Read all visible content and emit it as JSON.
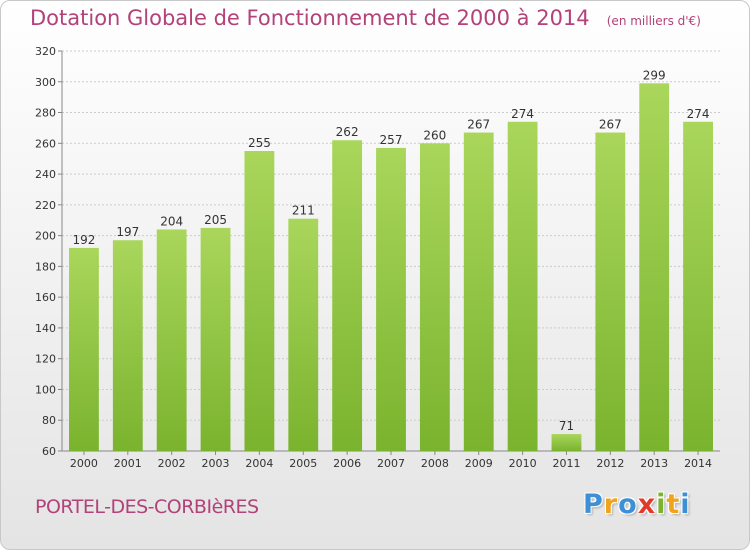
{
  "chart_data": {
    "type": "bar",
    "title": "Dotation Globale de Fonctionnement de 2000 à 2014",
    "subtitle": "(en milliers d'€)",
    "categories": [
      "2000",
      "2001",
      "2002",
      "2003",
      "2004",
      "2005",
      "2006",
      "2007",
      "2008",
      "2009",
      "2010",
      "2011",
      "2012",
      "2013",
      "2014"
    ],
    "values": [
      192,
      197,
      204,
      205,
      255,
      211,
      262,
      257,
      260,
      267,
      274,
      71,
      267,
      299,
      274
    ],
    "ylim": [
      60,
      320
    ],
    "yticks": [
      60,
      80,
      100,
      120,
      140,
      160,
      180,
      200,
      220,
      240,
      260,
      280,
      300,
      320
    ],
    "xlabel": "",
    "ylabel": "",
    "grid": true,
    "bar_color": "#7ab32e",
    "bar_color_light": "#a9d65b"
  },
  "footer": {
    "commune": "PORTEL-DES-CORBIèRES",
    "logo_letters": [
      "P",
      "r",
      "o",
      "x",
      "i",
      "t",
      "i"
    ],
    "logo_colors": [
      "#3d8fd6",
      "#f2a31c",
      "#3d8fd6",
      "#e23a2a",
      "#7ab32e",
      "#f2a31c",
      "#3d8fd6"
    ]
  },
  "colors": {
    "title": "#b3417a",
    "grid": "#cccccc"
  }
}
